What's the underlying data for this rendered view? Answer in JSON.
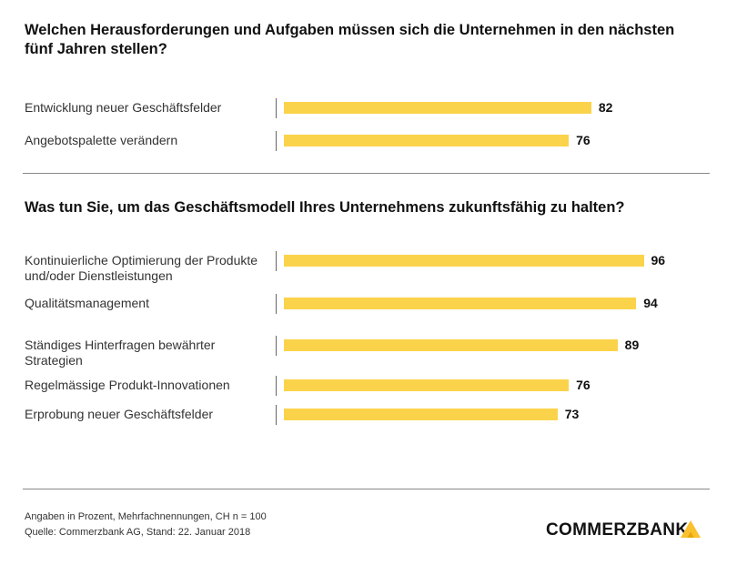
{
  "chart_data": [
    {
      "type": "bar",
      "orientation": "horizontal",
      "title": "Welchen Herausforderungen und Aufgaben müssen sich die Unternehmen in den nächsten fünf Jahren stellen?",
      "categories": [
        "Entwicklung neuer Geschäftsfelder",
        "Angebotspalette verändern"
      ],
      "values": [
        82,
        76
      ],
      "color": "#fbd34a"
    },
    {
      "type": "bar",
      "orientation": "horizontal",
      "title": "Was tun Sie, um das Geschäftsmodell Ihres Unternehmens zukunftsfähig zu halten?",
      "categories": [
        "Kontinuierliche Optimierung der Produkte und/oder Dienstleistungen",
        "Qualitätsmanagement",
        "Ständiges Hinterfragen bewährter Strategien",
        "Regelmässige Produkt-Innovationen",
        "Erprobung neuer Geschäftsfelder"
      ],
      "values": [
        96,
        94,
        89,
        76,
        73
      ],
      "color": "#fbd34a"
    }
  ],
  "footer": {
    "note": "Angaben in Prozent, Mehrfachnennungen, CH n = 100",
    "source": "Quelle: Commerzbank AG, Stand: 22. Januar 2018"
  },
  "logo": "COMMERZBANK"
}
